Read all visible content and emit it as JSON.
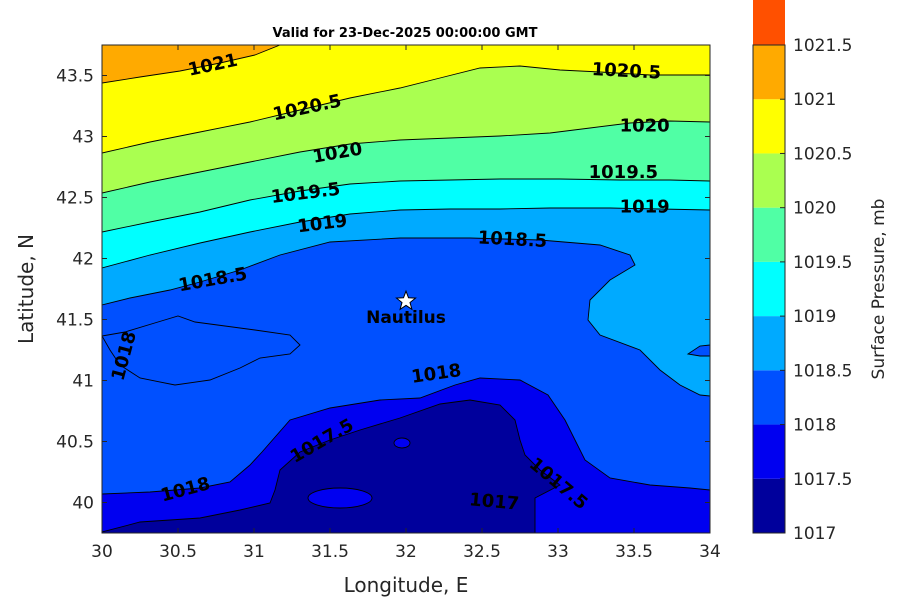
{
  "chart_data": {
    "type": "contour",
    "title": "Valid for 23-Dec-2025 00:00:00 GMT",
    "xlabel": "Longitude, E",
    "ylabel": "Latitude, N",
    "xlim": [
      30,
      34
    ],
    "ylim": [
      39.75,
      43.75
    ],
    "xticks": [
      30,
      30.5,
      31,
      31.5,
      32,
      32.5,
      33,
      33.5,
      34
    ],
    "xtick_labels": [
      "30",
      "30.5",
      "31",
      "31.5",
      "32",
      "32.5",
      "33",
      "33.5",
      "34"
    ],
    "yticks": [
      40,
      40.5,
      41,
      41.5,
      42,
      42.5,
      43,
      43.5
    ],
    "ytick_labels": [
      "40",
      "40.5",
      "41",
      "41.5",
      "42",
      "42.5",
      "43",
      "43.5"
    ],
    "colorbar": {
      "label": "Surface Pressure, mb",
      "levels": [
        1017,
        1017.5,
        1018,
        1018.5,
        1019,
        1019.5,
        1020,
        1020.5,
        1021,
        1021.5
      ],
      "tick_labels": [
        "1017",
        "1017.5",
        "1018",
        "1018.5",
        "1019",
        "1019.5",
        "1020",
        "1020.5",
        "1021",
        "1021.5"
      ],
      "colors": [
        "#00009c",
        "#0000f0",
        "#0050ff",
        "#00aaff",
        "#00ffff",
        "#50ffa5",
        "#aaff50",
        "#ffff00",
        "#ffaa00",
        "#ff5000"
      ]
    },
    "contour_labels": [
      {
        "text": "1021",
        "lon": 30.73,
        "lat": 43.58,
        "angle": -12
      },
      {
        "text": "1020.5",
        "lon": 31.35,
        "lat": 43.23,
        "angle": -12
      },
      {
        "text": "1020.5",
        "lon": 33.45,
        "lat": 43.53,
        "angle": 3
      },
      {
        "text": "1020",
        "lon": 31.55,
        "lat": 42.86,
        "angle": -10
      },
      {
        "text": "1020",
        "lon": 33.57,
        "lat": 43.08,
        "angle": 0
      },
      {
        "text": "1019.5",
        "lon": 31.34,
        "lat": 42.53,
        "angle": -7
      },
      {
        "text": "1019.5",
        "lon": 33.43,
        "lat": 42.7,
        "angle": 0
      },
      {
        "text": "1019",
        "lon": 31.45,
        "lat": 42.28,
        "angle": -7
      },
      {
        "text": "1019",
        "lon": 33.57,
        "lat": 42.42,
        "angle": 0
      },
      {
        "text": "1018.5",
        "lon": 30.73,
        "lat": 41.82,
        "angle": -10
      },
      {
        "text": "1018.5",
        "lon": 32.7,
        "lat": 42.15,
        "angle": 3
      },
      {
        "text": "1018",
        "lon": 30.15,
        "lat": 41.2,
        "angle": -75
      },
      {
        "text": "1018",
        "lon": 32.2,
        "lat": 41.05,
        "angle": -8
      },
      {
        "text": "1018",
        "lon": 30.55,
        "lat": 40.1,
        "angle": -15
      },
      {
        "text": "1017.5",
        "lon": 31.45,
        "lat": 40.5,
        "angle": -30
      },
      {
        "text": "1017.5",
        "lon": 33.0,
        "lat": 40.15,
        "angle": 40
      },
      {
        "text": "1017",
        "lon": 32.58,
        "lat": 40.0,
        "angle": 5
      }
    ],
    "marker": {
      "label": "Nautilus",
      "lon": 32.0,
      "lat": 41.65,
      "symbol": "star"
    }
  }
}
